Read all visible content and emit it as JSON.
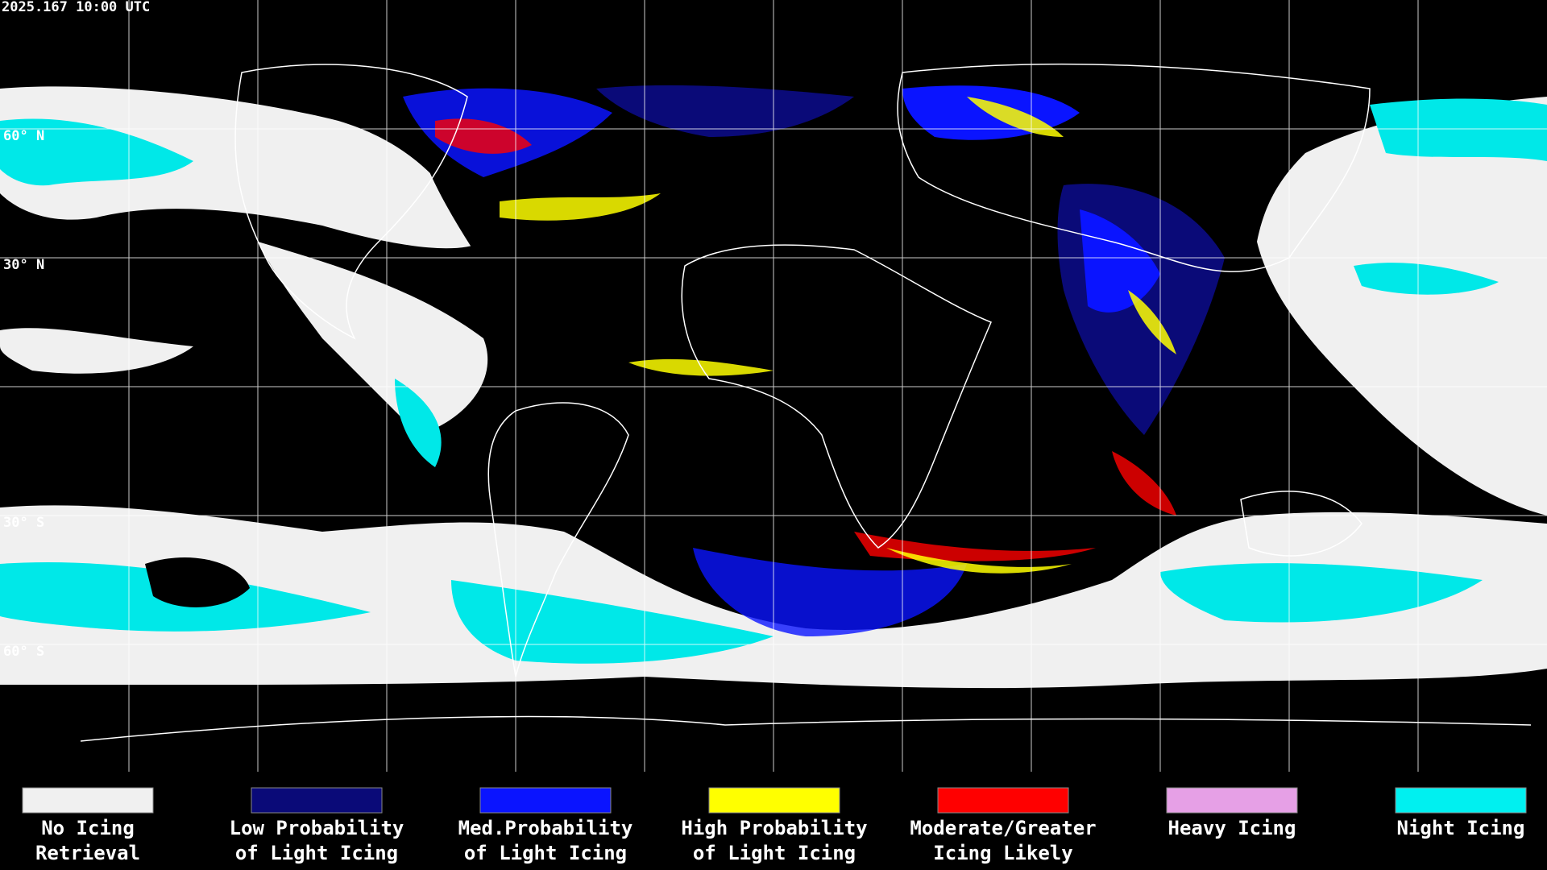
{
  "header": {
    "timestamp": "2025.167 10:00 UTC"
  },
  "map": {
    "latitude_labels": [
      "60° N",
      "30° N",
      "30° S",
      "60° S"
    ]
  },
  "legend": [
    {
      "label_lines": [
        "No Icing",
        "Retrieval"
      ],
      "color": "#f0f0f0"
    },
    {
      "label_lines": [
        "Low Probability",
        "of Light Icing"
      ],
      "color": "#0a0a78"
    },
    {
      "label_lines": [
        "Med.Probability",
        "of Light Icing"
      ],
      "color": "#0a14ff"
    },
    {
      "label_lines": [
        "High Probability",
        "of Light Icing"
      ],
      "color": "#ffff00"
    },
    {
      "label_lines": [
        "Moderate/Greater",
        "Icing Likely"
      ],
      "color": "#ff0000"
    },
    {
      "label_lines": [
        "Heavy Icing"
      ],
      "color": "#e6a0e6"
    },
    {
      "label_lines": [
        "Night Icing"
      ],
      "color": "#00f0f0"
    }
  ]
}
